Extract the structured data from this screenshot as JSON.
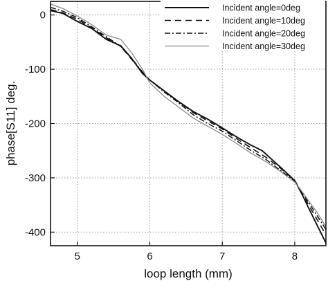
{
  "chart_data": {
    "type": "line",
    "title": "",
    "xlabel": "loop length (mm)",
    "ylabel": "phase[S11] deg.",
    "xlim": [
      4.63,
      8.43
    ],
    "ylim": [
      -425,
      25
    ],
    "xticks": [
      5,
      6,
      7,
      8
    ],
    "yticks": [
      0,
      -100,
      -200,
      -300,
      -400
    ],
    "xtick_labels": [
      "5",
      "6",
      "7",
      "8"
    ],
    "ytick_labels": [
      "0",
      "-100",
      "-200",
      "-300",
      "-400"
    ],
    "grid": "dotted vertical and horizontal at ticks",
    "legend_position": "top-right",
    "series": [
      {
        "name": "Incident angle=0deg",
        "style": "solid",
        "color": "#111111",
        "x": [
          4.63,
          4.8,
          5.0,
          5.2,
          5.4,
          5.6,
          5.75,
          5.9,
          6.0,
          6.2,
          6.4,
          6.6,
          6.8,
          7.0,
          7.2,
          7.4,
          7.55,
          7.8,
          8.0,
          8.1,
          8.2,
          8.3,
          8.43
        ],
        "y": [
          8,
          3,
          -12,
          -25,
          -45,
          -57,
          -80,
          -108,
          -120,
          -140,
          -160,
          -178,
          -192,
          -208,
          -225,
          -240,
          -250,
          -280,
          -305,
          -330,
          -358,
          -385,
          -420
        ]
      },
      {
        "name": "Incident angle=10deg",
        "style": "dashed",
        "color": "#111111",
        "x": [
          4.63,
          4.8,
          5.0,
          5.2,
          5.4,
          5.6,
          5.75,
          5.9,
          6.0,
          6.2,
          6.4,
          6.6,
          6.8,
          7.0,
          7.2,
          7.4,
          7.6,
          7.8,
          8.0,
          8.1,
          8.2,
          8.3,
          8.43
        ],
        "y": [
          10,
          4,
          -8,
          -24,
          -42,
          -58,
          -82,
          -106,
          -120,
          -140,
          -160,
          -180,
          -195,
          -210,
          -228,
          -245,
          -262,
          -282,
          -305,
          -328,
          -352,
          -375,
          -405
        ]
      },
      {
        "name": "Incident angle=20deg",
        "style": "dashdot",
        "color": "#111111",
        "x": [
          4.63,
          4.8,
          5.0,
          5.2,
          5.4,
          5.6,
          5.75,
          5.9,
          6.0,
          6.2,
          6.4,
          6.6,
          6.8,
          7.0,
          7.2,
          7.4,
          7.6,
          7.8,
          8.0,
          8.1,
          8.2,
          8.3,
          8.43
        ],
        "y": [
          14,
          7,
          -5,
          -22,
          -40,
          -58,
          -80,
          -105,
          -120,
          -142,
          -162,
          -184,
          -200,
          -214,
          -232,
          -250,
          -266,
          -286,
          -306,
          -326,
          -347,
          -368,
          -395
        ]
      },
      {
        "name": "Incident angle=30deg",
        "style": "solid-thin",
        "color": "#8a8a8a",
        "x": [
          4.63,
          4.8,
          5.0,
          5.2,
          5.4,
          5.6,
          5.75,
          5.9,
          6.0,
          6.2,
          6.4,
          6.6,
          6.8,
          7.0,
          7.2,
          7.4,
          7.6,
          7.8,
          8.0,
          8.1,
          8.2,
          8.3,
          8.43
        ],
        "y": [
          20,
          12,
          -2,
          -18,
          -37,
          -45,
          -70,
          -100,
          -125,
          -150,
          -170,
          -190,
          -205,
          -220,
          -237,
          -255,
          -270,
          -288,
          -308,
          -325,
          -344,
          -362,
          -390
        ]
      }
    ]
  }
}
